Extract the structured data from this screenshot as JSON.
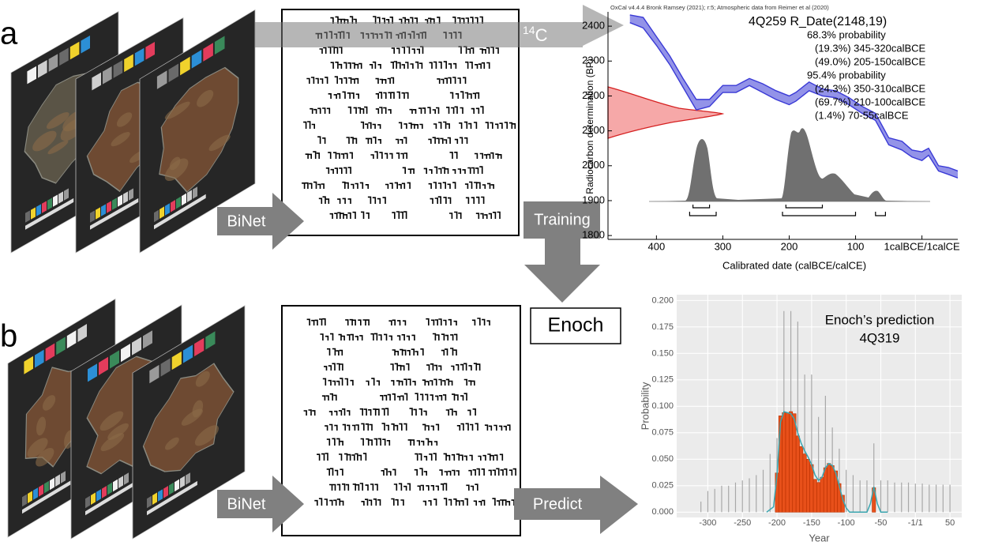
{
  "panel_labels": [
    "a",
    "b"
  ],
  "arrows": {
    "binet_a": "BiNet",
    "radiocarbon": {
      "mass": "14",
      "symbol": "C"
    },
    "training": "Training",
    "binet_b": "BiNet",
    "predict": "Predict"
  },
  "model": "Enoch",
  "charts": [
    {
      "type": "band",
      "header": "OxCal v4.4.4 Bronk Ramsey (2021); r:5; Atmospheric data from Reimer et al (2020)",
      "title": "4Q259 R_Date(2148,19)",
      "summary": [
        "68.3% probability",
        "(19.3%) 345-320calBCE",
        "(49.0%) 205-150calBCE",
        "95.4% probability",
        "(24.3%) 350-310calBCE",
        "(69.7%) 210-100calBCE",
        "(1.4%) 70-55calBCE"
      ],
      "x_label": "Calibrated date (calBCE/calCE)",
      "y_label": "Radiocarbon determination (BP)",
      "xlim": [
        473,
        -54
      ],
      "ylim": [
        1789,
        2441
      ],
      "xticks": [
        400,
        300,
        200,
        100,
        {
          "value": 0,
          "label": "1calBCE/1calCE"
        }
      ],
      "yticks": [
        1800,
        1900,
        2000,
        2100,
        2200,
        2300,
        2400
      ],
      "color": "#3a3ad6",
      "x": [
        440,
        420,
        400,
        380,
        360,
        340,
        320,
        300,
        280,
        260,
        240,
        220,
        200,
        190,
        170,
        150,
        130,
        110,
        90,
        70,
        50,
        30,
        15,
        0,
        -10,
        -25,
        -40,
        -54
      ],
      "upper": [
        2432,
        2425,
        2370,
        2315,
        2250,
        2190,
        2190,
        2230,
        2230,
        2250,
        2235,
        2215,
        2200,
        2210,
        2240,
        2220,
        2215,
        2195,
        2170,
        2150,
        2080,
        2070,
        2045,
        2040,
        2050,
        2000,
        1995,
        1985
      ],
      "lower": [
        2410,
        2395,
        2345,
        2290,
        2225,
        2160,
        2170,
        2210,
        2210,
        2230,
        2210,
        2190,
        2175,
        2185,
        2215,
        2200,
        2195,
        2175,
        2150,
        2130,
        2060,
        2045,
        2025,
        2015,
        2030,
        1985,
        1975,
        1965
      ]
    },
    {
      "type": "bar",
      "title": "Enoch’s prediction",
      "subtitle": "4Q319",
      "x_label": "Year",
      "y_label": "Probability",
      "xlim": [
        -345,
        67
      ],
      "ylim": [
        -0.005,
        0.2055
      ],
      "xticks": [
        -300,
        -250,
        -200,
        -150,
        -100,
        -50,
        {
          "value": 0,
          "label": "-1/1"
        },
        50
      ],
      "yticks": [
        {
          "value": 0,
          "label": "0.000"
        },
        {
          "value": 0.025,
          "label": "0.025"
        },
        {
          "value": 0.05,
          "label": "0.050"
        },
        {
          "value": 0.075,
          "label": "0.075"
        },
        {
          "value": 0.1,
          "label": "0.100"
        },
        {
          "value": 0.125,
          "label": "0.125"
        },
        {
          "value": 0.15,
          "label": "0.150"
        },
        {
          "value": 0.175,
          "label": "0.175"
        },
        {
          "value": 0.2,
          "label": "0.200"
        }
      ],
      "grid": true,
      "color": "#e8501a",
      "x": [
        -200,
        -195,
        -190,
        -185,
        -180,
        -175,
        -170,
        -165,
        -160,
        -155,
        -150,
        -145,
        -140,
        -135,
        -130,
        -125,
        -120,
        -115,
        -110,
        -105,
        -60
      ],
      "values": [
        0.037,
        0.091,
        0.094,
        0.094,
        0.095,
        0.093,
        0.072,
        0.062,
        0.055,
        0.05,
        0.045,
        0.031,
        0.028,
        0.033,
        0.042,
        0.046,
        0.044,
        0.039,
        0.027,
        0.016,
        0.023
      ],
      "spikes": {
        "color": "#a8a8a8",
        "x": [
          -310,
          -300,
          -290,
          -280,
          -270,
          -260,
          -250,
          -240,
          -230,
          -220,
          -210,
          -200,
          -190,
          -180,
          -170,
          -160,
          -150,
          -140,
          -130,
          -120,
          -110,
          -100,
          -90,
          -80,
          -70,
          -60,
          -50,
          -40,
          -30,
          -20,
          -10,
          0,
          10,
          20,
          30,
          40,
          50
        ],
        "values": [
          0.01,
          0.02,
          0.022,
          0.025,
          0.025,
          0.028,
          0.03,
          0.032,
          0.035,
          0.04,
          0.055,
          0.07,
          0.19,
          0.19,
          0.18,
          0.13,
          0.13,
          0.09,
          0.11,
          0.08,
          0.06,
          0.04,
          0.035,
          0.03,
          0.03,
          0.065,
          0.03,
          0.03,
          0.028,
          0.028,
          0.028,
          0.027,
          0.027,
          0.026,
          0.026,
          0.026,
          0.026
        ]
      },
      "density": {
        "color": "#3aa6b0",
        "x": [
          -215,
          -205,
          -200,
          -195,
          -190,
          -185,
          -180,
          -175,
          -170,
          -165,
          -160,
          -155,
          -150,
          -145,
          -140,
          -135,
          -130,
          -125,
          -120,
          -115,
          -110,
          -105,
          -100,
          -95,
          -90,
          -80,
          -70,
          -65,
          -60,
          -55,
          -50,
          -40
        ],
        "values": [
          0,
          0.005,
          0.035,
          0.085,
          0.095,
          0.094,
          0.093,
          0.088,
          0.075,
          0.065,
          0.058,
          0.052,
          0.045,
          0.035,
          0.03,
          0.033,
          0.042,
          0.046,
          0.044,
          0.037,
          0.025,
          0.012,
          0.004,
          0,
          0,
          0,
          0,
          0.008,
          0.024,
          0.008,
          0,
          0
        ]
      }
    }
  ]
}
